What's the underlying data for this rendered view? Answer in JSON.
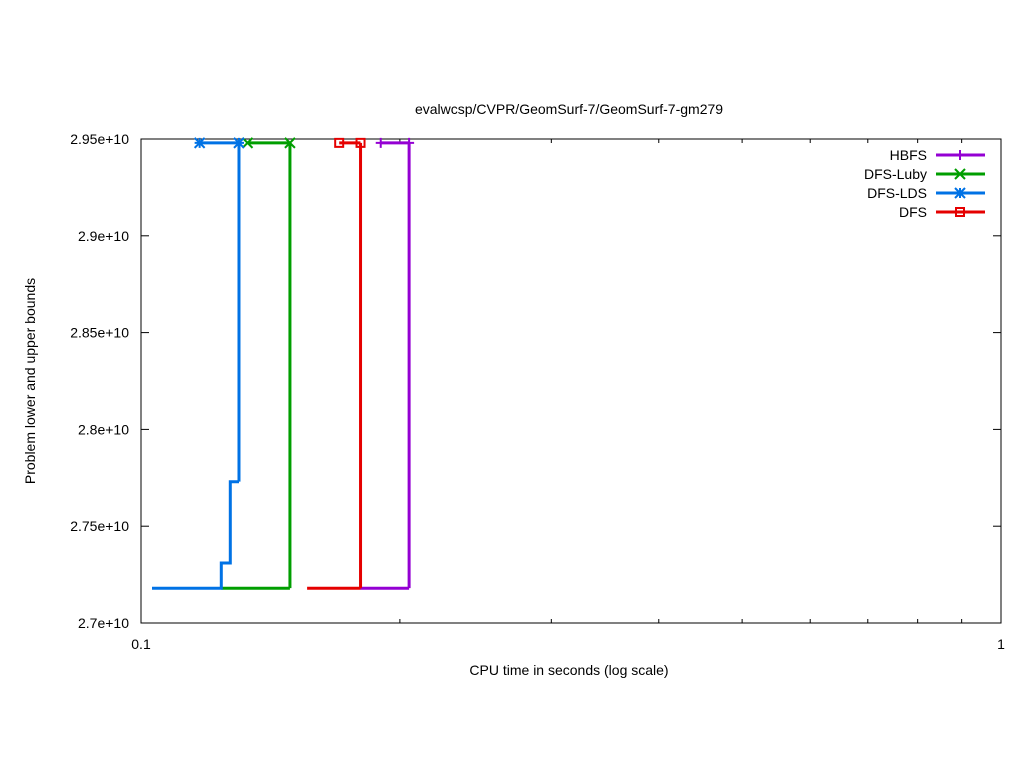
{
  "chart_data": {
    "type": "line",
    "title": "evalwcsp/CVPR/GeomSurf-7/GeomSurf-7-gm279",
    "xlabel": "CPU time in seconds (log scale)",
    "ylabel": "Problem lower and upper bounds",
    "x_scale": "log",
    "xlim": [
      0.1,
      1
    ],
    "ylim": [
      27000000000,
      29500000000
    ],
    "x_ticks": [
      {
        "value": 0.1,
        "label": "0.1"
      },
      {
        "value": 1,
        "label": "1"
      }
    ],
    "x_minor_ticks": [
      0.2,
      0.3,
      0.4,
      0.5,
      0.6,
      0.7,
      0.8,
      0.9
    ],
    "y_ticks": [
      {
        "value": 27000000000,
        "label": "2.7e+10"
      },
      {
        "value": 27500000000,
        "label": "2.75e+10"
      },
      {
        "value": 28000000000,
        "label": "2.8e+10"
      },
      {
        "value": 28500000000,
        "label": "2.85e+10"
      },
      {
        "value": 29000000000,
        "label": "2.9e+10"
      },
      {
        "value": 29500000000,
        "label": "2.95e+10"
      }
    ],
    "grid": false,
    "legend_position": "top-right",
    "series": [
      {
        "name": "HBFS",
        "color": "#9400d3",
        "marker": "plus",
        "lower": [
          [
            0.18,
            27180000000
          ],
          [
            0.205,
            27180000000
          ]
        ],
        "upper": [
          [
            0.19,
            29480000000
          ],
          [
            0.205,
            29480000000
          ]
        ],
        "markers": [
          [
            0.19,
            29480000000
          ],
          [
            0.205,
            29480000000
          ]
        ],
        "closing_x": 0.205
      },
      {
        "name": "DFS-Luby",
        "color": "#009e00",
        "marker": "x",
        "lower": [
          [
            0.124,
            27180000000
          ],
          [
            0.149,
            27180000000
          ]
        ],
        "upper": [
          [
            0.133,
            29480000000
          ],
          [
            0.149,
            29480000000
          ]
        ],
        "markers": [
          [
            0.133,
            29480000000
          ],
          [
            0.149,
            29480000000
          ]
        ],
        "closing_x": 0.149
      },
      {
        "name": "DFS-LDS",
        "color": "#0072e5",
        "marker": "star",
        "lower": [
          [
            0.103,
            27180000000
          ],
          [
            0.124,
            27180000000
          ],
          [
            0.124,
            27310000000
          ],
          [
            0.127,
            27310000000
          ],
          [
            0.127,
            27730000000
          ],
          [
            0.13,
            27730000000
          ]
        ],
        "upper": [
          [
            0.117,
            29480000000
          ],
          [
            0.13,
            29480000000
          ]
        ],
        "markers": [
          [
            0.117,
            29480000000
          ],
          [
            0.13,
            29480000000
          ]
        ],
        "closing_x": 0.13
      },
      {
        "name": "DFS",
        "color": "#e50000",
        "marker": "square",
        "lower": [
          [
            0.156,
            27180000000
          ],
          [
            0.18,
            27180000000
          ]
        ],
        "upper": [
          [
            0.17,
            29480000000
          ],
          [
            0.18,
            29480000000
          ]
        ],
        "markers": [
          [
            0.17,
            29480000000
          ],
          [
            0.18,
            29480000000
          ]
        ],
        "closing_x": 0.18
      }
    ]
  }
}
